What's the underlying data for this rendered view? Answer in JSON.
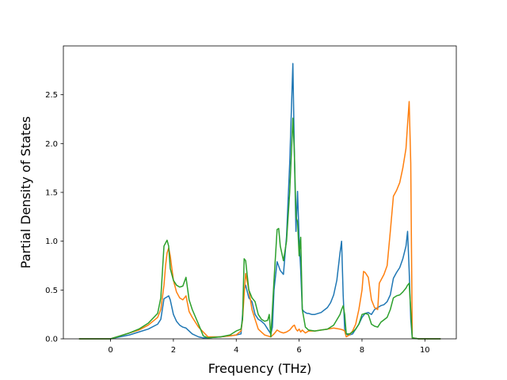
{
  "chart_data": {
    "type": "line",
    "title": "",
    "xlabel": "Frequency (THz)",
    "ylabel": "Partial Density of States",
    "xlim": [
      -1.5,
      11.0
    ],
    "ylim": [
      0,
      3.0
    ],
    "xticks": [
      0,
      2,
      4,
      6,
      8,
      10
    ],
    "xtick_labels": [
      "0",
      "2",
      "4",
      "6",
      "8",
      "10"
    ],
    "yticks": [
      0.0,
      0.5,
      1.0,
      1.5,
      2.0,
      2.5
    ],
    "ytick_labels": [
      "0.0",
      "0.5",
      "1.0",
      "1.5",
      "2.0",
      "2.5"
    ],
    "grid": false,
    "legend": false,
    "series": [
      {
        "color": "#1f77b4",
        "x": [
          -1.0,
          0.0,
          0.3,
          0.6,
          0.9,
          1.2,
          1.5,
          1.6,
          1.7,
          1.8,
          1.85,
          1.9,
          2.0,
          2.1,
          2.2,
          2.3,
          2.4,
          2.6,
          2.8,
          2.95,
          3.1,
          3.5,
          3.8,
          4.0,
          4.15,
          4.2,
          4.25,
          4.3,
          4.4,
          4.5,
          4.6,
          4.7,
          4.8,
          4.9,
          5.0,
          5.1,
          5.15,
          5.2,
          5.3,
          5.4,
          5.5,
          5.6,
          5.7,
          5.8,
          5.85,
          5.9,
          5.95,
          6.0,
          6.05,
          6.1,
          6.15,
          6.2,
          6.25,
          6.3,
          6.4,
          6.5,
          6.7,
          6.9,
          7.0,
          7.1,
          7.2,
          7.3,
          7.35,
          7.4,
          7.45,
          7.5,
          7.55,
          7.6,
          7.7,
          7.8,
          7.9,
          8.0,
          8.1,
          8.2,
          8.3,
          8.4,
          8.5,
          8.6,
          8.7,
          8.8,
          8.9,
          9.0,
          9.1,
          9.2,
          9.3,
          9.4,
          9.45,
          9.5,
          9.55,
          9.6,
          9.8,
          10.0,
          10.5
        ],
        "y": [
          0.0,
          0.0,
          0.02,
          0.04,
          0.07,
          0.1,
          0.15,
          0.2,
          0.41,
          0.43,
          0.44,
          0.4,
          0.25,
          0.18,
          0.14,
          0.12,
          0.11,
          0.05,
          0.02,
          0.01,
          0.01,
          0.02,
          0.03,
          0.04,
          0.05,
          0.25,
          0.5,
          0.55,
          0.42,
          0.38,
          0.25,
          0.2,
          0.18,
          0.15,
          0.1,
          0.05,
          0.12,
          0.5,
          0.79,
          0.7,
          0.66,
          1.05,
          1.8,
          2.82,
          1.9,
          1.1,
          1.51,
          1.02,
          0.7,
          0.3,
          0.28,
          0.27,
          0.26,
          0.26,
          0.25,
          0.25,
          0.27,
          0.32,
          0.37,
          0.45,
          0.6,
          0.88,
          1.0,
          0.45,
          0.1,
          0.05,
          0.04,
          0.04,
          0.05,
          0.1,
          0.15,
          0.22,
          0.26,
          0.27,
          0.25,
          0.3,
          0.32,
          0.34,
          0.35,
          0.38,
          0.45,
          0.62,
          0.68,
          0.73,
          0.82,
          0.95,
          1.1,
          0.7,
          0.2,
          0.01,
          0.0,
          0.0,
          0.0
        ]
      },
      {
        "color": "#ff7f0e",
        "x": [
          -1.0,
          0.0,
          0.3,
          0.6,
          0.9,
          1.2,
          1.5,
          1.6,
          1.7,
          1.75,
          1.8,
          1.85,
          1.9,
          2.0,
          2.1,
          2.2,
          2.3,
          2.4,
          2.5,
          2.6,
          2.8,
          2.95,
          3.1,
          3.5,
          3.8,
          4.0,
          4.15,
          4.2,
          4.25,
          4.3,
          4.4,
          4.5,
          4.6,
          4.7,
          4.8,
          4.9,
          5.0,
          5.1,
          5.2,
          5.3,
          5.4,
          5.5,
          5.6,
          5.7,
          5.8,
          5.85,
          5.9,
          5.95,
          6.0,
          6.05,
          6.1,
          6.2,
          6.3,
          6.5,
          6.7,
          6.9,
          7.1,
          7.3,
          7.4,
          7.45,
          7.5,
          7.6,
          7.7,
          7.8,
          7.9,
          8.0,
          8.05,
          8.1,
          8.2,
          8.3,
          8.4,
          8.5,
          8.55,
          8.6,
          8.7,
          8.8,
          8.9,
          9.0,
          9.1,
          9.2,
          9.3,
          9.4,
          9.45,
          9.5,
          9.55,
          9.6,
          9.8,
          10.0,
          10.5
        ],
        "y": [
          0.0,
          0.0,
          0.03,
          0.06,
          0.09,
          0.14,
          0.22,
          0.3,
          0.55,
          0.75,
          0.88,
          0.93,
          0.85,
          0.6,
          0.48,
          0.42,
          0.4,
          0.44,
          0.28,
          0.22,
          0.12,
          0.07,
          0.02,
          0.02,
          0.03,
          0.04,
          0.08,
          0.2,
          0.45,
          0.67,
          0.5,
          0.3,
          0.2,
          0.1,
          0.07,
          0.04,
          0.03,
          0.02,
          0.05,
          0.09,
          0.07,
          0.06,
          0.07,
          0.09,
          0.13,
          0.14,
          0.1,
          0.08,
          0.1,
          0.07,
          0.09,
          0.06,
          0.08,
          0.08,
          0.09,
          0.1,
          0.11,
          0.1,
          0.09,
          0.08,
          0.02,
          0.04,
          0.08,
          0.15,
          0.3,
          0.5,
          0.69,
          0.68,
          0.63,
          0.4,
          0.32,
          0.3,
          0.57,
          0.6,
          0.66,
          0.75,
          1.1,
          1.46,
          1.52,
          1.6,
          1.75,
          1.95,
          2.2,
          2.43,
          1.8,
          0.01,
          0.0,
          0.0,
          0.0
        ]
      },
      {
        "color": "#2ca02c",
        "x": [
          -1.0,
          0.0,
          0.3,
          0.6,
          0.9,
          1.2,
          1.5,
          1.6,
          1.7,
          1.8,
          1.85,
          1.9,
          2.0,
          2.1,
          2.2,
          2.3,
          2.4,
          2.5,
          2.6,
          2.8,
          2.95,
          3.1,
          3.5,
          3.8,
          4.0,
          4.15,
          4.2,
          4.25,
          4.3,
          4.4,
          4.5,
          4.6,
          4.7,
          4.8,
          4.9,
          5.0,
          5.05,
          5.1,
          5.2,
          5.3,
          5.35,
          5.4,
          5.5,
          5.6,
          5.7,
          5.8,
          5.85,
          5.9,
          5.95,
          6.0,
          6.05,
          6.1,
          6.2,
          6.3,
          6.5,
          6.7,
          6.9,
          7.1,
          7.3,
          7.35,
          7.4,
          7.45,
          7.5,
          7.6,
          7.7,
          7.8,
          7.9,
          8.0,
          8.1,
          8.2,
          8.3,
          8.4,
          8.5,
          8.6,
          8.8,
          8.9,
          9.0,
          9.1,
          9.2,
          9.3,
          9.4,
          9.45,
          9.5,
          9.55,
          9.6,
          9.8,
          10.0,
          10.5
        ],
        "y": [
          0.0,
          0.0,
          0.03,
          0.06,
          0.1,
          0.16,
          0.26,
          0.42,
          0.95,
          1.01,
          0.95,
          0.72,
          0.6,
          0.55,
          0.53,
          0.54,
          0.63,
          0.4,
          0.3,
          0.15,
          0.03,
          0.01,
          0.02,
          0.04,
          0.08,
          0.1,
          0.2,
          0.82,
          0.8,
          0.5,
          0.42,
          0.38,
          0.25,
          0.2,
          0.18,
          0.19,
          0.25,
          0.02,
          0.6,
          1.12,
          1.13,
          0.95,
          0.8,
          1.0,
          1.5,
          2.26,
          1.9,
          1.25,
          1.2,
          0.85,
          1.04,
          0.3,
          0.12,
          0.09,
          0.08,
          0.09,
          0.1,
          0.14,
          0.25,
          0.3,
          0.34,
          0.25,
          0.05,
          0.05,
          0.07,
          0.1,
          0.15,
          0.25,
          0.26,
          0.25,
          0.15,
          0.13,
          0.12,
          0.17,
          0.22,
          0.3,
          0.42,
          0.44,
          0.45,
          0.48,
          0.52,
          0.55,
          0.57,
          0.3,
          0.01,
          0.0,
          0.0,
          0.0
        ]
      }
    ]
  }
}
